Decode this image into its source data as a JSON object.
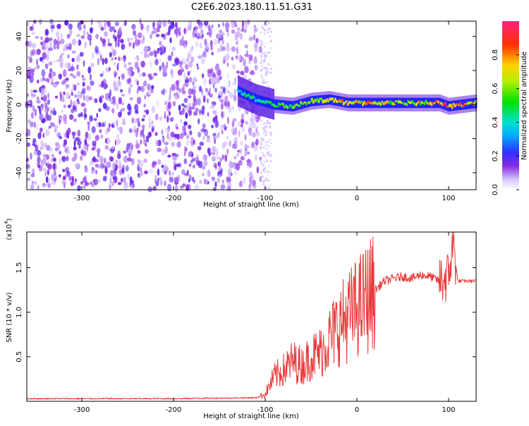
{
  "title": "C2E6.2023.180.11.51.G31",
  "chart_data": [
    {
      "type": "heatmap",
      "xlabel": "Height of straight line (km)",
      "ylabel": "Frequency (Hz)",
      "xlim": [
        -360,
        130
      ],
      "ylim": [
        -50,
        49
      ],
      "x_ticks": [
        "-300",
        "-200",
        "-100",
        "0",
        "100"
      ],
      "y_ticks": [
        "-40",
        "-20",
        "0",
        "20",
        "40"
      ],
      "colorbar": {
        "label": "Normalized spectral amplitude",
        "range": [
          0,
          1
        ],
        "ticks": [
          "0.0",
          "0.2",
          "0.4",
          "0.6",
          "0.8"
        ]
      },
      "noise_region_x": [
        -360,
        -105
      ],
      "signal_track": [
        {
          "x": -130,
          "freq": 8,
          "amp": 0.45
        },
        {
          "x": -110,
          "freq": 3,
          "amp": 0.5
        },
        {
          "x": -90,
          "freq": 0,
          "amp": 0.55
        },
        {
          "x": -70,
          "freq": -1,
          "amp": 0.6
        },
        {
          "x": -50,
          "freq": 2,
          "amp": 0.7
        },
        {
          "x": -30,
          "freq": 3,
          "amp": 0.75
        },
        {
          "x": -10,
          "freq": 1,
          "amp": 0.8
        },
        {
          "x": 10,
          "freq": 1,
          "amp": 0.8
        },
        {
          "x": 40,
          "freq": 1,
          "amp": 0.7
        },
        {
          "x": 70,
          "freq": 1,
          "amp": 0.75
        },
        {
          "x": 90,
          "freq": 1,
          "amp": 0.85
        },
        {
          "x": 100,
          "freq": -1,
          "amp": 0.9
        },
        {
          "x": 130,
          "freq": 1,
          "amp": 0.8
        }
      ]
    },
    {
      "type": "line",
      "xlabel": "Height of straight line (km)",
      "ylabel": "SNR (10 * v/v)",
      "y_multiplier": "(x10",
      "y_multiplier_exp": "4",
      "xlim": [
        -360,
        130
      ],
      "ylim": [
        0,
        1.9
      ],
      "x_ticks": [
        "-300",
        "-200",
        "-100",
        "0",
        "100"
      ],
      "y_ticks": [
        "0.5",
        "1.0",
        "1.5"
      ],
      "series": [
        {
          "color": "#e83a3a",
          "x": [
            -360,
            -300,
            -200,
            -110,
            -100,
            -90,
            -80,
            -70,
            -60,
            -50,
            -40,
            -30,
            -20,
            -10,
            0,
            10,
            20,
            30,
            40,
            50,
            60,
            70,
            80,
            90,
            100,
            105,
            110,
            120,
            130
          ],
          "y": [
            0.03,
            0.03,
            0.03,
            0.04,
            0.08,
            0.28,
            0.35,
            0.45,
            0.4,
            0.5,
            0.55,
            0.7,
            0.85,
            0.95,
            1.05,
            1.15,
            1.25,
            1.35,
            1.38,
            1.4,
            1.38,
            1.42,
            1.4,
            1.35,
            1.4,
            1.8,
            1.35,
            1.35,
            1.35
          ]
        }
      ]
    }
  ]
}
